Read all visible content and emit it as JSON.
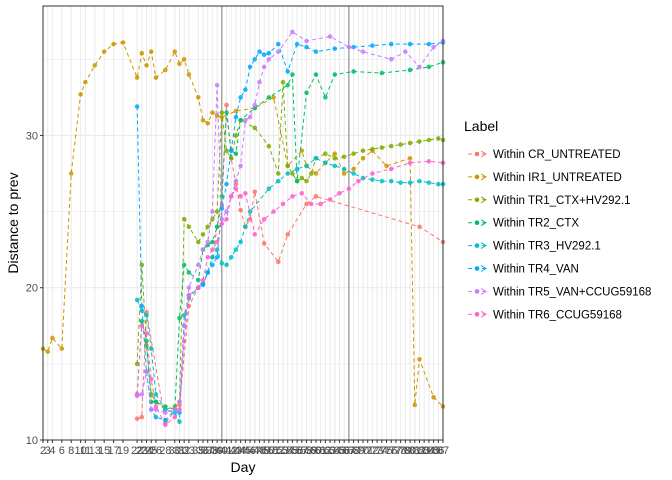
{
  "chart_data": {
    "type": "line",
    "xlabel": "Day",
    "ylabel": "Distance to prev",
    "legend_title": "Label",
    "legend_position": "right",
    "grid": true,
    "line_style": "dashed",
    "xlim": [
      2,
      87
    ],
    "ylim": [
      10,
      38.5
    ],
    "y_ticks": [
      10,
      20,
      30
    ],
    "x_ticks": [
      2,
      3,
      4,
      6,
      8,
      10,
      11,
      13,
      15,
      17,
      19,
      22,
      23,
      24,
      25,
      26,
      28,
      30,
      31,
      32,
      33,
      35,
      36,
      37,
      38,
      39,
      40,
      41,
      42,
      43,
      44,
      45,
      46,
      47,
      48,
      49,
      50,
      51,
      52,
      53,
      54,
      55,
      56,
      57,
      58,
      59,
      60,
      61,
      62,
      63,
      64,
      65,
      66,
      67,
      68,
      69,
      70,
      71,
      72,
      73,
      74,
      75,
      76,
      77,
      78,
      79,
      80,
      81,
      82,
      83,
      84,
      85,
      86,
      87
    ],
    "x_tick_labels": [
      "2",
      "3",
      "4",
      "6",
      "8",
      "10",
      "11",
      "13",
      "15",
      "17",
      "19",
      "22",
      "23",
      "24",
      "25",
      "26",
      "28",
      "30",
      "31",
      "32",
      "33",
      "35",
      "36",
      "37",
      "38",
      "39",
      "40",
      "41",
      "42",
      "43",
      "44",
      "45",
      "46",
      "47",
      "48",
      "49",
      "50",
      "51",
      "52",
      "53",
      "54",
      "55",
      "56",
      "57",
      "58",
      "59",
      "60",
      "61",
      "62",
      "63",
      "64",
      "65",
      "66",
      "67",
      "68",
      "69",
      "70",
      "71",
      "72",
      "73",
      "74",
      "75",
      "76",
      "77",
      "78",
      "79",
      "80",
      "81",
      "82",
      "83",
      "84",
      "85",
      "86",
      "87"
    ],
    "vlines": [
      40,
      67
    ],
    "series": [
      {
        "name": "Within CR_UNTREATED",
        "color": "#F8766D",
        "x": [
          22,
          23,
          24,
          28,
          31,
          33,
          35,
          36,
          37,
          38,
          39,
          40,
          41,
          42,
          43,
          44,
          45,
          46,
          47,
          49,
          52,
          54,
          58,
          60,
          82,
          87
        ],
        "y": [
          11.4,
          11.5,
          18.4,
          11.1,
          12.3,
          18.8,
          20.0,
          20.3,
          21.0,
          22.0,
          24.0,
          25.4,
          32.0,
          28.5,
          26.8,
          25.1,
          24.0,
          24.5,
          26.3,
          22.9,
          21.7,
          23.5,
          25.5,
          26.0,
          24.0,
          23.0
        ]
      },
      {
        "name": "Within IR1_UNTREATED",
        "color": "#CD9600",
        "x": [
          2,
          3,
          4,
          6,
          8,
          10,
          11,
          13,
          15,
          17,
          19,
          22,
          23,
          24,
          25,
          26,
          28,
          30,
          31,
          32,
          33,
          35,
          36,
          37,
          38,
          39,
          40,
          43,
          47,
          51,
          54,
          57,
          58,
          60,
          62,
          64,
          66,
          68,
          70,
          72,
          75,
          80,
          81,
          82,
          85,
          87
        ],
        "y": [
          16.0,
          15.8,
          16.7,
          16.0,
          27.5,
          32.7,
          33.5,
          34.6,
          35.5,
          36.0,
          36.1,
          33.8,
          35.4,
          34.6,
          35.5,
          33.8,
          34.3,
          35.5,
          34.7,
          35.0,
          34.0,
          32.5,
          31.0,
          30.8,
          31.5,
          31.3,
          31.2,
          31.6,
          31.8,
          32.5,
          28.0,
          29.0,
          28.0,
          27.5,
          28.2,
          28.8,
          27.5,
          27.8,
          28.5,
          29.0,
          28.0,
          28.5,
          12.3,
          15.3,
          12.8,
          12.2
        ]
      },
      {
        "name": "Within TR1_CTX+HV292.1",
        "color": "#7CAE00",
        "x": [
          22,
          23,
          24,
          25,
          26,
          28,
          30,
          31,
          32,
          33,
          35,
          36,
          37,
          38,
          39,
          40,
          41,
          42,
          43,
          44,
          47,
          50,
          52,
          53,
          54,
          55,
          56,
          57,
          58,
          59,
          60,
          62,
          64,
          66,
          68,
          70,
          72,
          74,
          76,
          78,
          80,
          82,
          84,
          86,
          87
        ],
        "y": [
          15.0,
          21.5,
          16.2,
          13.0,
          12.5,
          12.0,
          12.2,
          12.5,
          24.5,
          24.0,
          23.0,
          23.5,
          24.0,
          24.5,
          25.0,
          31.5,
          29.0,
          28.5,
          30.0,
          31.0,
          30.5,
          29.3,
          27.5,
          33.5,
          28.0,
          27.5,
          27.0,
          27.2,
          27.0,
          27.5,
          28.5,
          28.8,
          28.5,
          28.6,
          28.8,
          29.0,
          29.1,
          29.2,
          29.3,
          29.4,
          29.5,
          29.6,
          29.7,
          29.8,
          29.7
        ]
      },
      {
        "name": "Within TR2_CTX",
        "color": "#00BE67",
        "x": [
          22,
          23,
          24,
          25,
          26,
          28,
          30,
          31,
          32,
          33,
          35,
          36,
          37,
          38,
          39,
          40,
          41,
          42,
          43,
          44,
          47,
          50,
          54,
          55,
          56,
          58,
          60,
          62,
          64,
          68,
          74,
          80,
          84,
          87
        ],
        "y": [
          13.0,
          17.8,
          16.5,
          12.5,
          12.5,
          12.2,
          12.0,
          18.0,
          21.5,
          21.0,
          20.5,
          22.5,
          22.8,
          23.0,
          24.0,
          26.0,
          31.5,
          29.0,
          28.8,
          31.0,
          31.8,
          32.5,
          33.3,
          34.0,
          27.0,
          32.8,
          34.0,
          32.5,
          34.0,
          34.2,
          34.1,
          34.3,
          34.5,
          34.8
        ]
      },
      {
        "name": "Within TR3_HV292.1",
        "color": "#00BFC4",
        "x": [
          22,
          23,
          24,
          25,
          26,
          28,
          30,
          31,
          32,
          33,
          35,
          36,
          37,
          38,
          39,
          40,
          41,
          42,
          43,
          44,
          45,
          46,
          50,
          52,
          54,
          56,
          58,
          60,
          62,
          64,
          66,
          68,
          70,
          72,
          74,
          76,
          78,
          80,
          82,
          84,
          86,
          87
        ],
        "y": [
          19.2,
          18.5,
          18.2,
          16.0,
          13.0,
          12.0,
          11.8,
          11.2,
          18.2,
          19.3,
          20.0,
          20.2,
          21.0,
          22.0,
          22.5,
          21.6,
          21.5,
          22.0,
          22.5,
          23.0,
          24.0,
          25.0,
          26.5,
          27.0,
          27.5,
          27.8,
          28.0,
          28.5,
          28.2,
          28.0,
          27.8,
          27.5,
          27.2,
          27.1,
          27.0,
          27.0,
          26.9,
          26.9,
          27.0,
          26.9,
          26.8,
          26.8
        ]
      },
      {
        "name": "Within TR4_VAN",
        "color": "#00A9FF",
        "x": [
          22,
          23,
          24,
          25,
          26,
          28,
          30,
          31,
          32,
          33,
          35,
          36,
          37,
          38,
          39,
          40,
          41,
          42,
          43,
          44,
          45,
          46,
          47,
          48,
          49,
          50,
          52,
          54,
          56,
          58,
          60,
          64,
          68,
          72,
          76,
          80,
          84,
          87
        ],
        "y": [
          31.9,
          18.8,
          14.5,
          12.0,
          11.5,
          11.3,
          12.0,
          11.8,
          17.5,
          19.5,
          20.0,
          20.2,
          21.0,
          21.5,
          22.0,
          25.2,
          26.8,
          29.0,
          31.2,
          32.5,
          33.0,
          34.5,
          35.0,
          35.5,
          35.3,
          35.4,
          36.0,
          34.2,
          36.0,
          35.8,
          35.5,
          35.7,
          35.8,
          35.9,
          36.0,
          36.0,
          36.0,
          36.1
        ]
      },
      {
        "name": "Within TR5_VAN+CCUG59168",
        "color": "#C77CFF",
        "x": [
          22,
          23,
          24,
          25,
          26,
          28,
          30,
          31,
          32,
          33,
          35,
          36,
          37,
          38,
          39,
          40,
          41,
          42,
          43,
          44,
          45,
          46,
          47,
          48,
          49,
          50,
          52,
          55,
          58,
          63,
          67,
          70,
          76,
          79,
          82,
          85,
          87
        ],
        "y": [
          12.9,
          13.0,
          14.5,
          12.0,
          12.0,
          11.8,
          12.0,
          12.5,
          17.5,
          20.0,
          21.5,
          22.5,
          23.0,
          25.0,
          33.3,
          24.5,
          25.0,
          26.0,
          27.0,
          28.0,
          31.0,
          31.2,
          32.0,
          33.5,
          34.5,
          35.0,
          35.5,
          36.8,
          36.2,
          36.5,
          35.8,
          35.5,
          35.0,
          35.5,
          34.5,
          35.8,
          36.2
        ]
      },
      {
        "name": "Within TR6_CCUG59168",
        "color": "#FF61CC",
        "x": [
          22,
          23,
          24,
          25,
          26,
          28,
          30,
          31,
          32,
          33,
          35,
          36,
          37,
          38,
          39,
          40,
          41,
          42,
          43,
          44,
          45,
          47,
          49,
          51,
          53,
          55,
          57,
          59,
          61,
          63,
          65,
          67,
          69,
          72,
          76,
          80,
          84,
          87
        ],
        "y": [
          13.0,
          17.5,
          17.0,
          14.0,
          12.2,
          11.0,
          11.5,
          12.0,
          16.5,
          19.5,
          20.0,
          20.5,
          22.0,
          22.5,
          23.0,
          24.2,
          24.5,
          26.0,
          26.5,
          26.0,
          26.2,
          23.5,
          24.5,
          25.0,
          25.5,
          26.0,
          26.2,
          25.5,
          25.5,
          25.8,
          26.2,
          26.5,
          27.0,
          27.5,
          27.8,
          28.2,
          28.3,
          28.2
        ]
      }
    ]
  }
}
